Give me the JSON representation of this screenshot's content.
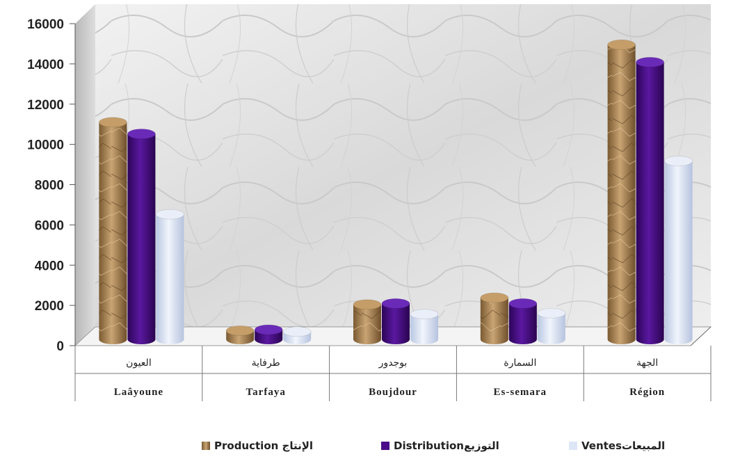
{
  "chart_data": {
    "type": "bar",
    "categories": [
      {
        "ar": "العيون",
        "fr": "Laâyoune"
      },
      {
        "ar": "طرفاية",
        "fr": "Tarfaya"
      },
      {
        "ar": "بوجدور",
        "fr": "Boujdour"
      },
      {
        "ar": "السمارة",
        "fr": "Es-semara"
      },
      {
        "ar": "الجهة",
        "fr": "Région"
      }
    ],
    "series": [
      {
        "name": "Production الإنتاج",
        "values": [
          11200,
          450,
          1800,
          2150,
          15200
        ]
      },
      {
        "name": "Distributionالتوزيع",
        "values": [
          10600,
          500,
          1850,
          1850,
          14300
        ]
      },
      {
        "name": "Ventesالمبيعات",
        "values": [
          6450,
          400,
          1300,
          1350,
          9200
        ]
      }
    ],
    "y_ticks": [
      "0",
      "2000",
      "4000",
      "6000",
      "8000",
      "10000",
      "12000",
      "14000",
      "16000"
    ],
    "ylim": [
      0,
      16000
    ],
    "legend_position": "bottom",
    "colors": {
      "production": "#b08a5a",
      "distribution": "#4b0c8a",
      "ventes": "#dce6f6"
    }
  }
}
